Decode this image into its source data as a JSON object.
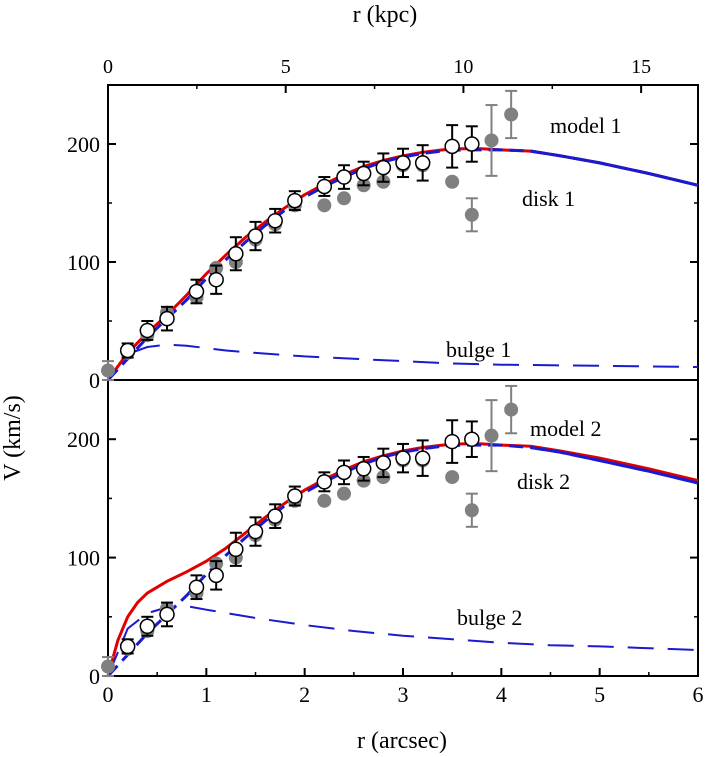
{
  "colors": {
    "model": "#e00000",
    "disk": "#1a1ad0",
    "bulge": "#1a1ad0",
    "filled_marker": "#808080",
    "frame": "#000000"
  },
  "chart_data": {
    "type": "scatter",
    "x_axis": {
      "label": "r (arcsec)",
      "range": [
        0,
        6
      ],
      "ticks": [
        "0",
        "1",
        "2",
        "3",
        "4",
        "5",
        "6"
      ]
    },
    "x_top_axis": {
      "label": "r (kpc)",
      "range_kpc": [
        0,
        16.6
      ],
      "ticks": [
        "0",
        "5",
        "10",
        "15"
      ]
    },
    "y_axis": {
      "label": "V (km/s)",
      "range": [
        0,
        250
      ]
    },
    "panels": [
      {
        "name": "panel-1",
        "y_ticks": [
          "0",
          "100",
          "200"
        ],
        "labels": {
          "model": "model 1",
          "disk": "disk 1",
          "bulge": "bulge 1"
        },
        "model": {
          "x": [
            0,
            0.2,
            0.4,
            0.6,
            0.8,
            1.0,
            1.2,
            1.4,
            1.6,
            1.8,
            2.0,
            2.2,
            2.4,
            2.6,
            2.8,
            3.0,
            3.2,
            3.4,
            3.6,
            3.8,
            4.0,
            4.3,
            4.6,
            5.0,
            5.5,
            6.0
          ],
          "y": [
            0,
            23,
            40,
            55,
            72,
            90,
            106,
            121,
            134,
            146,
            157,
            166,
            174,
            181,
            186,
            190,
            193,
            195,
            196,
            196,
            195,
            194,
            190,
            184,
            175,
            165
          ]
        },
        "disk": {
          "x": [
            0,
            0.2,
            0.4,
            0.6,
            0.8,
            1.0,
            1.2,
            1.4,
            1.6,
            1.8,
            2.0,
            2.2,
            2.4,
            2.6,
            2.8,
            3.0,
            3.2,
            3.4,
            3.6,
            3.8,
            4.0,
            4.3,
            4.6,
            5.0,
            5.5,
            6.0
          ],
          "y": [
            0,
            18,
            36,
            52,
            68,
            86,
            102,
            117,
            131,
            144,
            155,
            164,
            172,
            179,
            185,
            189,
            192,
            194,
            195,
            195,
            195,
            194,
            190,
            184,
            175,
            165
          ]
        },
        "bulge": {
          "x": [
            0,
            0.2,
            0.4,
            0.6,
            0.8,
            1.0,
            1.2,
            1.5,
            2.0,
            2.5,
            3.0,
            3.5,
            4.0,
            5.0,
            6.0
          ],
          "y": [
            0,
            22,
            28,
            30,
            29,
            27,
            25,
            23,
            20,
            18,
            16,
            14,
            13,
            12,
            11
          ]
        },
        "open_points": {
          "x": [
            0.2,
            0.4,
            0.6,
            0.9,
            1.1,
            1.3,
            1.5,
            1.7,
            1.9,
            2.2,
            2.4,
            2.6,
            2.8,
            3.0,
            3.2,
            3.5,
            3.7
          ],
          "y": [
            25,
            42,
            52,
            75,
            85,
            107,
            122,
            135,
            152,
            164,
            172,
            175,
            180,
            184,
            184,
            198,
            200
          ],
          "err": [
            6,
            8,
            10,
            10,
            12,
            14,
            12,
            10,
            8,
            8,
            10,
            10,
            12,
            12,
            15,
            18,
            15
          ]
        },
        "filled_points": {
          "x": [
            0.0,
            0.2,
            0.4,
            0.6,
            0.9,
            1.1,
            1.3,
            1.5,
            1.7,
            1.9,
            2.2,
            2.4,
            2.6,
            2.8,
            3.0,
            3.2,
            3.5,
            3.7,
            3.9,
            4.1
          ],
          "y": [
            8,
            23,
            38,
            57,
            70,
            95,
            100,
            119,
            132,
            148,
            148,
            154,
            165,
            168,
            182,
            182,
            168,
            140,
            203,
            225
          ],
          "err": [
            8,
            0,
            0,
            0,
            0,
            0,
            0,
            0,
            0,
            0,
            0,
            0,
            0,
            0,
            0,
            0,
            0,
            14,
            30,
            20
          ]
        }
      },
      {
        "name": "panel-2",
        "y_ticks": [
          "0",
          "100",
          "200"
        ],
        "labels": {
          "model": "model 2",
          "disk": "disk 2",
          "bulge": "bulge 2"
        },
        "model": {
          "x": [
            0,
            0.1,
            0.2,
            0.3,
            0.4,
            0.6,
            0.8,
            1.0,
            1.2,
            1.4,
            1.6,
            1.8,
            2.0,
            2.2,
            2.4,
            2.6,
            2.8,
            3.0,
            3.2,
            3.4,
            3.6,
            3.8,
            4.0,
            4.3,
            4.6,
            5.0,
            5.5,
            6.0
          ],
          "y": [
            0,
            30,
            50,
            62,
            70,
            80,
            88,
            97,
            108,
            121,
            134,
            146,
            157,
            166,
            174,
            181,
            186,
            190,
            193,
            195,
            196,
            196,
            195,
            194,
            190,
            184,
            175,
            165
          ]
        },
        "disk": {
          "x": [
            0,
            0.2,
            0.4,
            0.6,
            0.8,
            1.0,
            1.2,
            1.4,
            1.6,
            1.8,
            2.0,
            2.2,
            2.4,
            2.6,
            2.8,
            3.0,
            3.2,
            3.4,
            3.6,
            3.8,
            4.0,
            4.3,
            4.6,
            5.0,
            5.5,
            6.0
          ],
          "y": [
            0,
            18,
            36,
            52,
            68,
            86,
            102,
            117,
            131,
            144,
            155,
            164,
            172,
            179,
            185,
            189,
            192,
            194,
            195,
            195,
            195,
            193,
            189,
            182,
            173,
            163
          ]
        },
        "bulge": {
          "x": [
            0,
            0.2,
            0.4,
            0.6,
            0.8,
            1.0,
            1.5,
            2.0,
            2.5,
            3.0,
            3.5,
            4.0,
            4.5,
            5.0,
            6.0
          ],
          "y": [
            0,
            40,
            53,
            58,
            59,
            56,
            49,
            43,
            38,
            34,
            31,
            28,
            26,
            25,
            22
          ]
        },
        "open_points": {
          "x": [
            0.2,
            0.4,
            0.6,
            0.9,
            1.1,
            1.3,
            1.5,
            1.7,
            1.9,
            2.2,
            2.4,
            2.6,
            2.8,
            3.0,
            3.2,
            3.5,
            3.7
          ],
          "y": [
            25,
            42,
            52,
            75,
            85,
            107,
            122,
            135,
            152,
            164,
            172,
            175,
            180,
            184,
            184,
            198,
            200
          ],
          "err": [
            6,
            8,
            10,
            10,
            12,
            14,
            12,
            10,
            8,
            8,
            10,
            10,
            12,
            12,
            15,
            18,
            15
          ]
        },
        "filled_points": {
          "x": [
            0.0,
            0.2,
            0.4,
            0.6,
            0.9,
            1.1,
            1.3,
            1.5,
            1.7,
            1.9,
            2.2,
            2.4,
            2.6,
            2.8,
            3.0,
            3.2,
            3.5,
            3.7,
            3.9,
            4.1
          ],
          "y": [
            8,
            23,
            38,
            57,
            70,
            95,
            100,
            119,
            132,
            148,
            148,
            154,
            165,
            168,
            182,
            182,
            168,
            140,
            203,
            225
          ],
          "err": [
            8,
            0,
            0,
            0,
            0,
            0,
            0,
            0,
            0,
            0,
            0,
            0,
            0,
            0,
            0,
            0,
            0,
            14,
            30,
            20
          ]
        }
      }
    ]
  }
}
